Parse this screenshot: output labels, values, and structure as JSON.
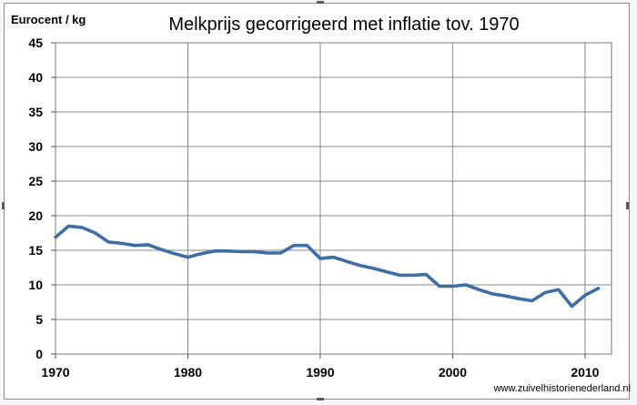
{
  "chart_data": {
    "type": "line",
    "title": "Melkprijs  gecorrigeerd met inflatie tov. 1970",
    "ylabel": "Eurocent / kg",
    "xlabel": "",
    "xlim": [
      1970,
      2012
    ],
    "ylim": [
      0,
      45
    ],
    "x_ticks": [
      1970,
      1980,
      1990,
      2000,
      2010
    ],
    "y_ticks": [
      0,
      5,
      10,
      15,
      20,
      25,
      30,
      35,
      40,
      45
    ],
    "grid": true,
    "legend": "none",
    "line_color": "#3f6ea5",
    "series": [
      {
        "x": [
          1970,
          1971,
          1972,
          1973,
          1974,
          1975,
          1976,
          1977,
          1978,
          1979,
          1980,
          1981,
          1982,
          1983,
          1984,
          1985,
          1986,
          1987,
          1988,
          1989,
          1990,
          1991,
          1992,
          1993,
          1994,
          1995,
          1996,
          1997,
          1998,
          1999,
          2000,
          2001,
          2002,
          2003,
          2004,
          2005,
          2006,
          2007,
          2008,
          2009,
          2010,
          2011
        ],
        "values": [
          16.9,
          18.5,
          18.3,
          17.5,
          16.2,
          16.0,
          15.7,
          15.8,
          15.1,
          14.5,
          14.0,
          14.5,
          14.9,
          14.9,
          14.8,
          14.8,
          14.6,
          14.6,
          15.7,
          15.7,
          13.8,
          14.0,
          13.4,
          12.8,
          12.4,
          11.9,
          11.4,
          11.4,
          11.5,
          9.8,
          9.8,
          10.0,
          9.3,
          8.7,
          8.4,
          8.0,
          7.7,
          8.9,
          9.3,
          6.9,
          8.5,
          9.5
        ]
      }
    ]
  },
  "footer": {
    "credit": "www.zuivelhistorienederland.nl"
  }
}
